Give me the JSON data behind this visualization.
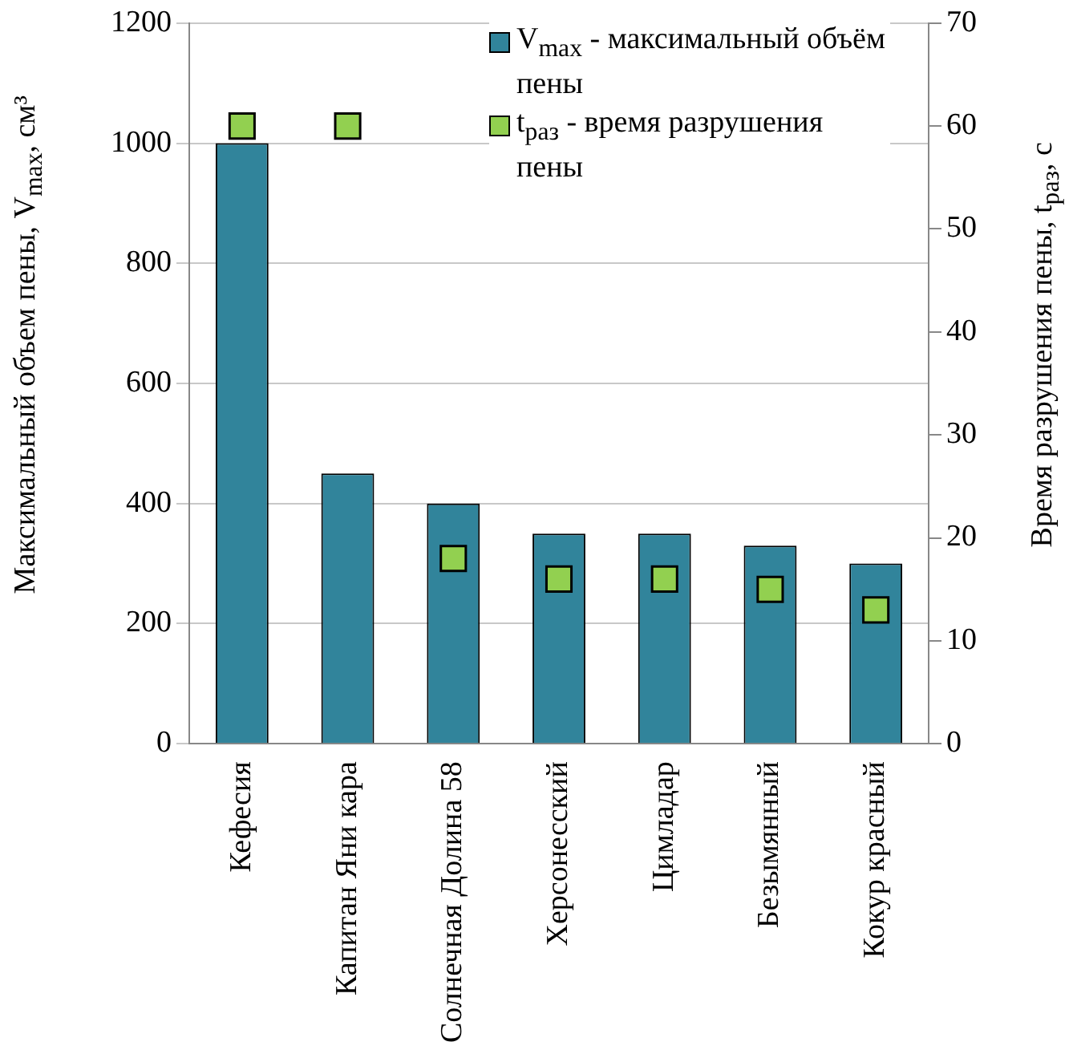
{
  "chart_data": {
    "type": "bar",
    "categories": [
      "Кефесия",
      "Капитан Яни кара",
      "Солнечная Долина 58",
      "Херсонесский",
      "Цимладар",
      "Безымянный",
      "Кокур красный"
    ],
    "series": [
      {
        "name": "V$_{max}$ - максимальный объём пены",
        "color": "#31849b",
        "values": [
          1000,
          450,
          400,
          350,
          350,
          330,
          300
        ]
      },
      {
        "name": "t$_{раз}$  - время разрушения пены",
        "type": "scatter",
        "axis": "y2",
        "color": "#92d050",
        "values": [
          60,
          60,
          18,
          16,
          16,
          15,
          13
        ]
      }
    ],
    "ylabel": "Максимальный объем пены, V$_{max}$, см³",
    "y2label": "Время разрушения пены, t$_{раз}$, с",
    "ylim": [
      0,
      1200
    ],
    "yticks": [
      0,
      200,
      400,
      600,
      800,
      1000,
      1200
    ],
    "y2lim": [
      0,
      70
    ],
    "y2ticks": [
      0,
      10,
      20,
      30,
      40,
      50,
      60,
      70
    ],
    "grid": "y",
    "legend": "top right",
    "marker": "square"
  }
}
